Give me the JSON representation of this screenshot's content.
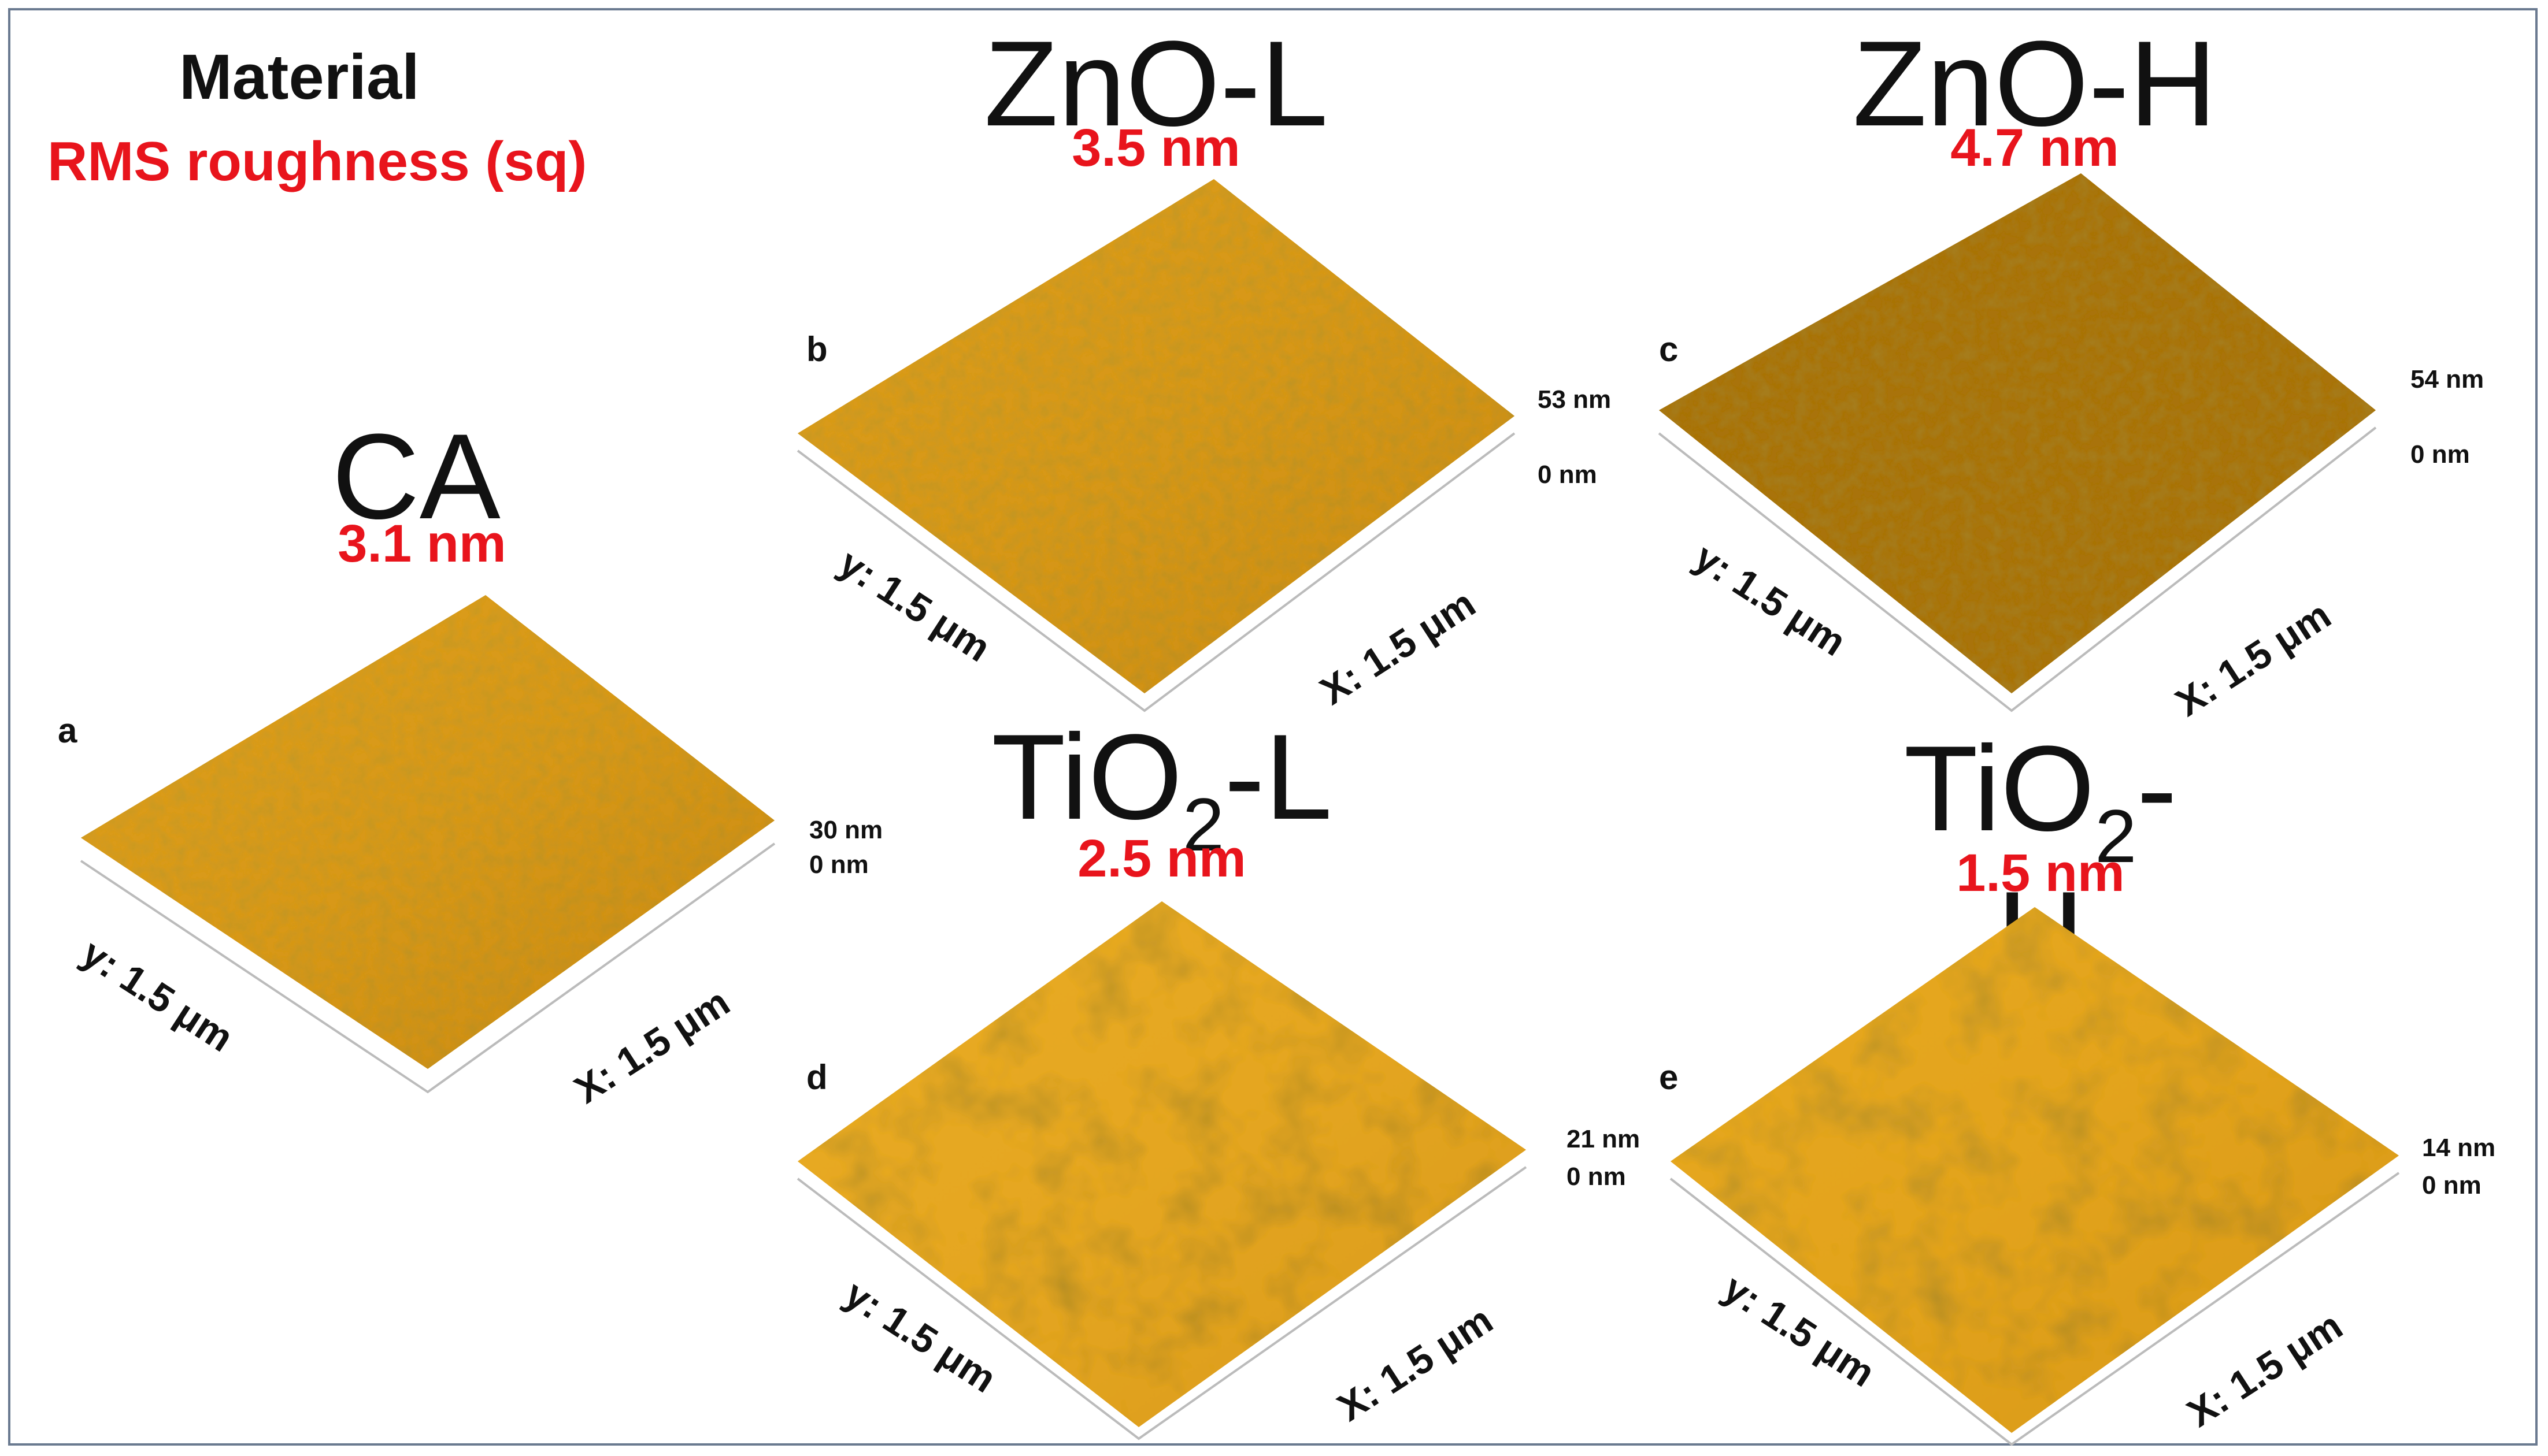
{
  "legend": {
    "title": "Material",
    "subtitle": "RMS roughness (sq)"
  },
  "panels": [
    {
      "id": "a",
      "material": "CA",
      "material_sub": "",
      "material_suffix": "",
      "roughness": "3.1 nm",
      "z_max": "30 nm",
      "z_min": "0 nm",
      "y_axis": "y: 1.5 μm",
      "x_axis": "X: 1.5 μm"
    },
    {
      "id": "b",
      "material": "ZnO-L",
      "material_sub": "",
      "material_suffix": "",
      "roughness": "3.5 nm",
      "z_max": "53 nm",
      "z_min": "0 nm",
      "y_axis": "y: 1.5 μm",
      "x_axis": "X: 1.5 μm"
    },
    {
      "id": "c",
      "material": "ZnO-H",
      "material_sub": "",
      "material_suffix": "",
      "roughness": "4.7 nm",
      "z_max": "54 nm",
      "z_min": "0 nm",
      "y_axis": "y: 1.5 μm",
      "x_axis": "X: 1.5 μm"
    },
    {
      "id": "d",
      "material": "TiO",
      "material_sub": "2",
      "material_suffix": "-L",
      "roughness": "2.5 nm",
      "z_max": "21 nm",
      "z_min": "0 nm",
      "y_axis": "y: 1.5 μm",
      "x_axis": "X: 1.5 μm"
    },
    {
      "id": "e",
      "material": "TiO",
      "material_sub": "2",
      "material_suffix": "-H",
      "roughness": "1.5 nm",
      "z_max": "14 nm",
      "z_min": "0 nm",
      "y_axis": "y: 1.5 μm",
      "x_axis": "X: 1.5 μm"
    }
  ],
  "colors": {
    "surface_light": "#f6c23a",
    "surface_mid": "#d89412",
    "surface_dark": "#7a4c06",
    "roughness_text": "#e8141c"
  }
}
